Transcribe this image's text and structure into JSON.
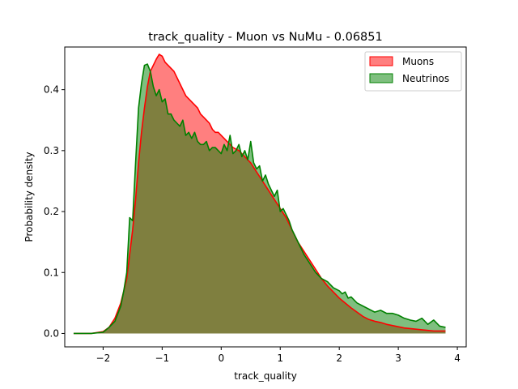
{
  "chart_data": {
    "type": "area",
    "title": "track_quality - Muon vs NuMu - 0.06851",
    "xlabel": "track_quality",
    "ylabel": "Probability density",
    "xlim": [
      -2.65,
      4.15
    ],
    "ylim": [
      -0.022,
      0.47
    ],
    "xticks": [
      -2,
      -1,
      0,
      1,
      2,
      3,
      4
    ],
    "xtick_labels": [
      "−2",
      "−1",
      "0",
      "1",
      "2",
      "3",
      "4"
    ],
    "yticks": [
      0.0,
      0.1,
      0.2,
      0.3,
      0.4
    ],
    "ytick_labels": [
      "0.0",
      "0.1",
      "0.2",
      "0.3",
      "0.4"
    ],
    "grid": false,
    "legend_position": "top-right",
    "series": [
      {
        "name": "Muons",
        "fill_color": "#ff0000",
        "line_color": "#ff0000",
        "fill_opacity": 0.5,
        "x": [
          -2.5,
          -2.2,
          -2.0,
          -1.9,
          -1.8,
          -1.7,
          -1.6,
          -1.5,
          -1.45,
          -1.4,
          -1.35,
          -1.3,
          -1.25,
          -1.2,
          -1.15,
          -1.1,
          -1.05,
          -1.0,
          -0.95,
          -0.9,
          -0.85,
          -0.8,
          -0.75,
          -0.7,
          -0.65,
          -0.6,
          -0.55,
          -0.5,
          -0.45,
          -0.4,
          -0.35,
          -0.3,
          -0.25,
          -0.2,
          -0.15,
          -0.1,
          -0.05,
          0.0,
          0.05,
          0.1,
          0.2,
          0.3,
          0.4,
          0.5,
          0.6,
          0.7,
          0.8,
          0.9,
          1.0,
          1.1,
          1.2,
          1.3,
          1.4,
          1.5,
          1.6,
          1.7,
          1.8,
          1.9,
          2.0,
          2.1,
          2.2,
          2.3,
          2.4,
          2.5,
          2.6,
          2.7,
          2.8,
          2.9,
          3.0,
          3.1,
          3.2,
          3.3,
          3.4,
          3.5,
          3.6,
          3.7,
          3.8
        ],
        "values": [
          0.0,
          0.0,
          0.003,
          0.01,
          0.025,
          0.05,
          0.09,
          0.17,
          0.22,
          0.28,
          0.33,
          0.37,
          0.405,
          0.43,
          0.44,
          0.45,
          0.458,
          0.455,
          0.445,
          0.44,
          0.435,
          0.43,
          0.42,
          0.41,
          0.4,
          0.39,
          0.385,
          0.38,
          0.375,
          0.37,
          0.36,
          0.355,
          0.35,
          0.345,
          0.335,
          0.33,
          0.33,
          0.325,
          0.32,
          0.315,
          0.305,
          0.3,
          0.29,
          0.28,
          0.265,
          0.25,
          0.235,
          0.22,
          0.205,
          0.19,
          0.17,
          0.15,
          0.135,
          0.12,
          0.105,
          0.09,
          0.078,
          0.068,
          0.058,
          0.05,
          0.042,
          0.035,
          0.028,
          0.023,
          0.02,
          0.018,
          0.015,
          0.013,
          0.011,
          0.009,
          0.008,
          0.007,
          0.006,
          0.005,
          0.004,
          0.004,
          0.004
        ]
      },
      {
        "name": "Neutrinos",
        "fill_color": "#008000",
        "line_color": "#008000",
        "fill_opacity": 0.5,
        "x": [
          -2.5,
          -2.2,
          -2.0,
          -1.9,
          -1.8,
          -1.7,
          -1.65,
          -1.6,
          -1.55,
          -1.5,
          -1.45,
          -1.4,
          -1.35,
          -1.3,
          -1.25,
          -1.2,
          -1.15,
          -1.1,
          -1.05,
          -1.0,
          -0.95,
          -0.9,
          -0.85,
          -0.8,
          -0.75,
          -0.7,
          -0.65,
          -0.6,
          -0.55,
          -0.5,
          -0.45,
          -0.4,
          -0.35,
          -0.3,
          -0.25,
          -0.2,
          -0.15,
          -0.1,
          -0.05,
          0.0,
          0.05,
          0.1,
          0.15,
          0.2,
          0.25,
          0.3,
          0.35,
          0.4,
          0.45,
          0.5,
          0.55,
          0.6,
          0.65,
          0.7,
          0.75,
          0.8,
          0.85,
          0.9,
          0.95,
          1.0,
          1.05,
          1.1,
          1.15,
          1.2,
          1.3,
          1.4,
          1.5,
          1.6,
          1.7,
          1.8,
          1.9,
          2.0,
          2.05,
          2.1,
          2.15,
          2.2,
          2.3,
          2.4,
          2.5,
          2.6,
          2.7,
          2.8,
          2.9,
          3.0,
          3.1,
          3.2,
          3.3,
          3.4,
          3.5,
          3.6,
          3.7,
          3.8
        ],
        "values": [
          0.0,
          0.0,
          0.002,
          0.01,
          0.02,
          0.045,
          0.07,
          0.1,
          0.19,
          0.185,
          0.28,
          0.37,
          0.41,
          0.44,
          0.442,
          0.43,
          0.405,
          0.39,
          0.4,
          0.38,
          0.385,
          0.36,
          0.36,
          0.35,
          0.345,
          0.34,
          0.35,
          0.325,
          0.33,
          0.32,
          0.33,
          0.315,
          0.31,
          0.31,
          0.315,
          0.3,
          0.305,
          0.305,
          0.3,
          0.295,
          0.31,
          0.3,
          0.325,
          0.295,
          0.3,
          0.31,
          0.29,
          0.3,
          0.285,
          0.315,
          0.28,
          0.27,
          0.275,
          0.25,
          0.26,
          0.245,
          0.235,
          0.225,
          0.235,
          0.2,
          0.205,
          0.195,
          0.185,
          0.17,
          0.15,
          0.13,
          0.115,
          0.1,
          0.09,
          0.085,
          0.075,
          0.07,
          0.065,
          0.068,
          0.058,
          0.06,
          0.05,
          0.045,
          0.04,
          0.035,
          0.038,
          0.033,
          0.033,
          0.03,
          0.025,
          0.022,
          0.02,
          0.025,
          0.015,
          0.022,
          0.012,
          0.01
        ]
      }
    ]
  }
}
